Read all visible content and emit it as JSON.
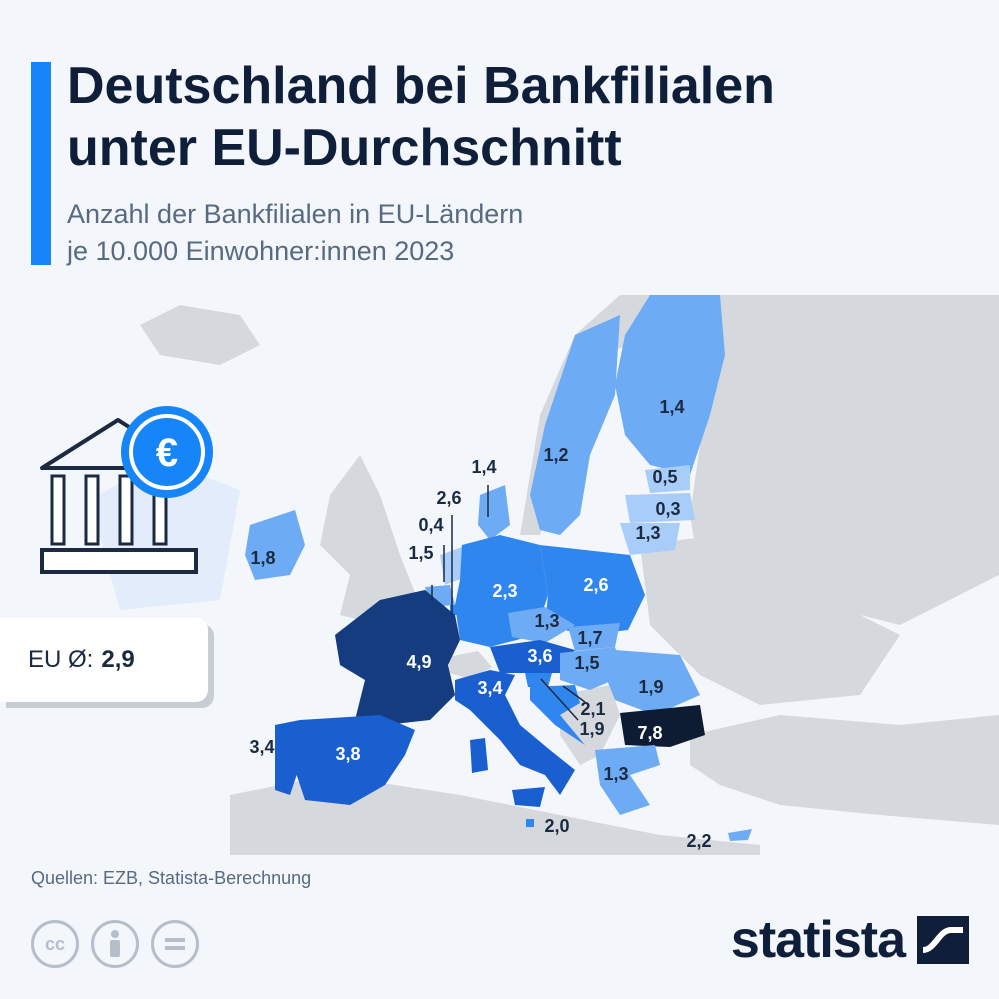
{
  "header": {
    "title_line1": "Deutschland bei Bankfilialen",
    "title_line2": "unter EU-Durchschnitt",
    "subtitle_line1": "Anzahl der Bankfilialen in EU-Ländern",
    "subtitle_line2": "je 10.000 Einwohner:innen 2023"
  },
  "average": {
    "label": "EU Ø:",
    "value": "2,9"
  },
  "countries": {
    "finland": "1,4",
    "sweden": "1,2",
    "denmark": "1,4",
    "estonia": "0,5",
    "latvia": "0,3",
    "lithuania": "1,3",
    "ireland": "1,8",
    "netherlands": "0,4",
    "belgium": "1,5",
    "luxembourg": "2,6",
    "germany": "2,3",
    "poland": "2,6",
    "czechia": "1,3",
    "slovakia": "1,7",
    "austria": "3,6",
    "hungary": "1,5",
    "romania": "1,9",
    "france": "4,9",
    "italy": "3,4",
    "slovenia": "2,1",
    "croatia": "1,9",
    "bulgaria": "7,8",
    "portugal": "3,4",
    "spain": "3,8",
    "greece": "1,3",
    "malta": "2,0",
    "cyprus": "2,2"
  },
  "colors": {
    "accent": "#1685f8",
    "scale_lightest": "#a9cdf9",
    "scale_light": "#6eabf5",
    "scale_medium": "#2f86ee",
    "scale_strong": "#1a5fcf",
    "scale_dark": "#143c7e",
    "scale_darkest": "#0d1b33",
    "non_eu": "#d5d9de"
  },
  "source": "Quellen: EZB, Statista-Berechnung",
  "brand": "statista"
}
